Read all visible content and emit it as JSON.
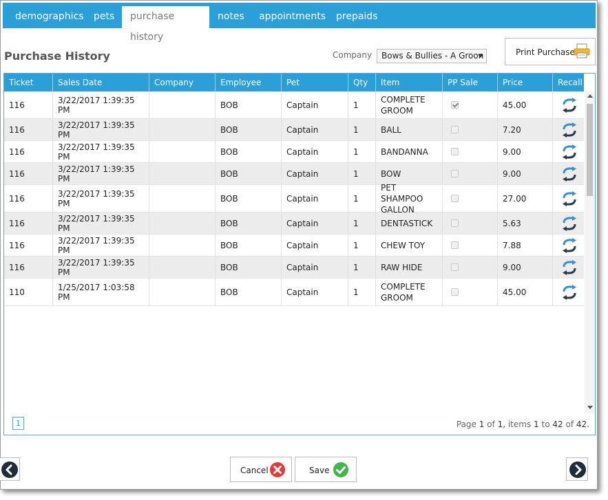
{
  "tabs": [
    {
      "label": "demographics",
      "active": false
    },
    {
      "label": "pets",
      "active": false
    },
    {
      "label": "purchase history",
      "active": true
    },
    {
      "label": "notes",
      "active": false
    },
    {
      "label": "appointments",
      "active": false
    },
    {
      "label": "prepaids",
      "active": false
    }
  ],
  "header": {
    "title": "Purchase History",
    "company_label": "Company",
    "company_value": "Bows & Bullies - A Groon",
    "print_label": "Print Purchases"
  },
  "grid": {
    "columns": [
      "Ticket",
      "Sales Date",
      "Company",
      "Employee",
      "Pet",
      "Qty",
      "Item",
      "PP Sale",
      "Price",
      "Recall"
    ],
    "rows": [
      {
        "ticket": "116",
        "date": "3/22/2017 1:39:35 PM",
        "company": "",
        "employee": "BOB",
        "pet": "Captain",
        "qty": "1",
        "item": "COMPLETE GROOM",
        "pp_sale": true,
        "price": "45.00"
      },
      {
        "ticket": "116",
        "date": "3/22/2017 1:39:35 PM",
        "company": "",
        "employee": "BOB",
        "pet": "Captain",
        "qty": "1",
        "item": "BALL",
        "pp_sale": false,
        "price": "7.20"
      },
      {
        "ticket": "116",
        "date": "3/22/2017 1:39:35 PM",
        "company": "",
        "employee": "BOB",
        "pet": "Captain",
        "qty": "1",
        "item": "BANDANNA",
        "pp_sale": false,
        "price": "9.00"
      },
      {
        "ticket": "116",
        "date": "3/22/2017 1:39:35 PM",
        "company": "",
        "employee": "BOB",
        "pet": "Captain",
        "qty": "1",
        "item": "BOW",
        "pp_sale": false,
        "price": "9.00"
      },
      {
        "ticket": "116",
        "date": "3/22/2017 1:39:35 PM",
        "company": "",
        "employee": "BOB",
        "pet": "Captain",
        "qty": "1",
        "item": "PET SHAMPOO GALLON",
        "pp_sale": false,
        "price": "27.00"
      },
      {
        "ticket": "116",
        "date": "3/22/2017 1:39:35 PM",
        "company": "",
        "employee": "BOB",
        "pet": "Captain",
        "qty": "1",
        "item": "DENTASTICK",
        "pp_sale": false,
        "price": "5.63"
      },
      {
        "ticket": "116",
        "date": "3/22/2017 1:39:35 PM",
        "company": "",
        "employee": "BOB",
        "pet": "Captain",
        "qty": "1",
        "item": "CHEW TOY",
        "pp_sale": false,
        "price": "7.88"
      },
      {
        "ticket": "116",
        "date": "3/22/2017 1:39:35 PM",
        "company": "",
        "employee": "BOB",
        "pet": "Captain",
        "qty": "1",
        "item": "RAW HIDE",
        "pp_sale": false,
        "price": "9.00"
      },
      {
        "ticket": "110",
        "date": "1/25/2017 1:03:58 PM",
        "company": "",
        "employee": "BOB",
        "pet": "Captain",
        "qty": "1",
        "item": "COMPLETE GROOM",
        "pp_sale": false,
        "price": "45.00"
      }
    ]
  },
  "pager": {
    "current_page": "1",
    "info_page_label": "Page",
    "info_page": "1",
    "info_of": "of",
    "info_total_pages": "1,",
    "info_items_label": "items",
    "info_from": "1",
    "info_to_label": "to",
    "info_to": "42",
    "info_total": "42."
  },
  "footer": {
    "cancel_label": "Cancel",
    "save_label": "Save"
  },
  "icons": {
    "print": "printer-icon",
    "recall": "recall-icon",
    "cancel": "cancel-x-icon",
    "save": "save-check-icon",
    "prev": "chevron-left-icon",
    "next": "chevron-right-icon"
  },
  "colors": {
    "accent": "#2a9fd8",
    "cancel": "#e53935",
    "save": "#43b549",
    "recall_blue": "#3a8fd0",
    "recall_dark": "#2b3a4a"
  }
}
